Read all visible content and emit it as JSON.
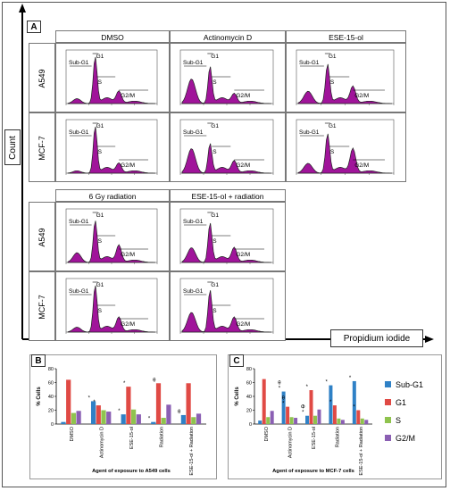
{
  "figure": {
    "panel_a_label": "A",
    "panel_b_label": "B",
    "panel_c_label": "C",
    "y_axis_label": "Count",
    "x_axis_label": "Propidium iodide",
    "histogram_fill_color": "#a0149a",
    "histogram_markers": {
      "sub_g1": "Sub-G1",
      "g1": "G1",
      "s": "S",
      "g2m": "G2/M"
    },
    "columns_top": [
      "DMSO",
      "Actinomycin D",
      "ESE-15-ol"
    ],
    "columns_bottom": [
      "6 Gy radiation",
      "ESE-15-ol + radiation"
    ],
    "rows": [
      "A549",
      "MCF-7"
    ]
  },
  "chart_data": [
    {
      "type": "bar",
      "panel": "B",
      "ylabel": "% Cells",
      "xlabel": "Agent of exposure to A549 cells",
      "ylim": [
        0,
        80
      ],
      "yticks": [
        0,
        20,
        40,
        60,
        80
      ],
      "categories": [
        "DMSO",
        "Actinomycin D",
        "ESE-15-ol",
        "Radiation",
        "ESE-15-ol + Radiation"
      ],
      "series": [
        {
          "name": "Sub-G1",
          "color": "#2f81c6",
          "values": [
            3,
            33,
            14,
            3,
            13
          ]
        },
        {
          "name": "G1",
          "color": "#e04a45",
          "values": [
            64,
            27,
            54,
            59,
            59
          ]
        },
        {
          "name": "S",
          "color": "#8fc34e",
          "values": [
            16,
            20,
            21,
            9,
            10
          ]
        },
        {
          "name": "G2/M",
          "color": "#8b5fb3",
          "values": [
            19,
            18,
            14,
            28,
            15
          ]
        }
      ],
      "annotations": [
        "*",
        "*",
        "*",
        "*",
        "*",
        "θ",
        "θ"
      ]
    },
    {
      "type": "bar",
      "panel": "C",
      "ylabel": "% Cells",
      "xlabel": "Agent of exposure to MCF-7 cells",
      "ylim": [
        0,
        80
      ],
      "yticks": [
        0,
        20,
        40,
        60,
        80
      ],
      "categories": [
        "DMSO",
        "Actinomycin D",
        "ESE-15-ol",
        "Radiation",
        "ESE-15-ol + Radiation"
      ],
      "series": [
        {
          "name": "Sub-G1",
          "color": "#2f81c6",
          "values": [
            5,
            47,
            12,
            56,
            62
          ]
        },
        {
          "name": "G1",
          "color": "#e04a45",
          "values": [
            65,
            25,
            49,
            27,
            20
          ]
        },
        {
          "name": "S",
          "color": "#8fc34e",
          "values": [
            10,
            10,
            12,
            8,
            8
          ]
        },
        {
          "name": "G2/M",
          "color": "#8b5fb3",
          "values": [
            19,
            9,
            21,
            6,
            6
          ]
        }
      ],
      "annotations": [
        "*",
        "*",
        "*",
        "*",
        "*",
        "*",
        "*",
        "*",
        "θ",
        "θ",
        "Φ"
      ],
      "legend": [
        "Sub-G1",
        "G1",
        "S",
        "G2/M"
      ],
      "legend_placement": "right"
    }
  ]
}
